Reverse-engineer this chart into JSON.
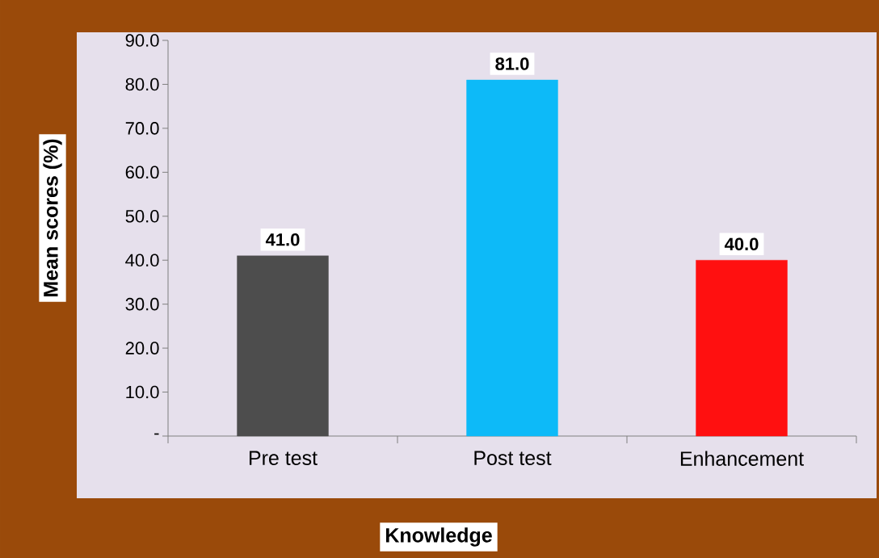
{
  "chart_data": {
    "type": "bar",
    "xlabel": "Knowledge",
    "ylabel": "Mean scores (%)",
    "categories": [
      "Pre test",
      "Post test",
      "Enhancement"
    ],
    "values": [
      41,
      81,
      40
    ],
    "colors": [
      "#4d4d4d",
      "#0dbaf8",
      "#ff1010"
    ],
    "value_labels": [
      "41.0",
      "81.0",
      "40.0"
    ],
    "ylim": [
      0,
      90
    ],
    "yticks": [
      {
        "value": 0,
        "label": "-"
      },
      {
        "value": 10,
        "label": "10.0"
      },
      {
        "value": 20,
        "label": "20.0"
      },
      {
        "value": 30,
        "label": "30.0"
      },
      {
        "value": 40,
        "label": "40.0"
      },
      {
        "value": 50,
        "label": "50.0"
      },
      {
        "value": 60,
        "label": "60.0"
      },
      {
        "value": 70,
        "label": "70.0"
      },
      {
        "value": 80,
        "label": "80.0"
      },
      {
        "value": 90,
        "label": "90.0"
      }
    ],
    "grid": false
  }
}
